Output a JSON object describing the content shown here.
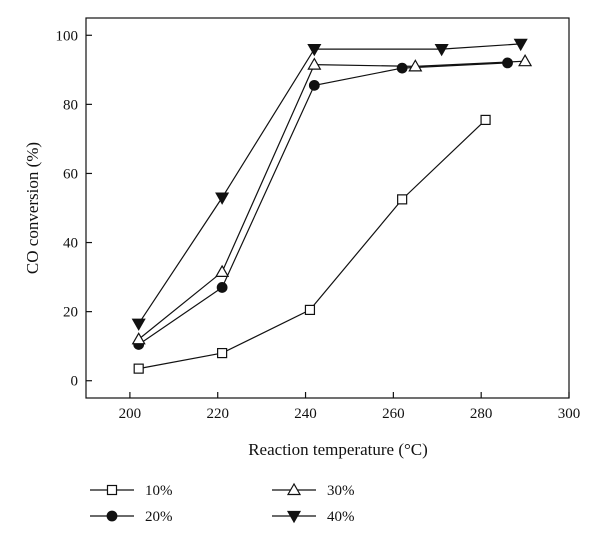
{
  "chart_data": {
    "type": "line",
    "title": "",
    "xlabel": "Reaction temperature (°C)",
    "ylabel": "CO conversion (%)",
    "xlim": [
      190,
      300
    ],
    "ylim": [
      -5,
      105
    ],
    "xticks": [
      200,
      220,
      240,
      260,
      280,
      300
    ],
    "yticks": [
      0,
      20,
      40,
      60,
      80,
      100
    ],
    "grid": false,
    "legend_position": "bottom",
    "series": [
      {
        "name": "10%",
        "marker": "square-open",
        "x": [
          202,
          221,
          241,
          262,
          281
        ],
        "y": [
          3.5,
          8,
          20.5,
          52.5,
          75.5
        ]
      },
      {
        "name": "20%",
        "marker": "circle-filled",
        "x": [
          202,
          221,
          242,
          262,
          286
        ],
        "y": [
          10.5,
          27,
          85.5,
          90.5,
          92
        ]
      },
      {
        "name": "30%",
        "marker": "triangle-up-open",
        "x": [
          202,
          221,
          242,
          265,
          290
        ],
        "y": [
          12,
          31.5,
          91.5,
          91,
          92.5
        ]
      },
      {
        "name": "40%",
        "marker": "triangle-down-filled",
        "x": [
          202,
          221,
          242,
          271,
          289
        ],
        "y": [
          16.5,
          53,
          96,
          96,
          97.5
        ]
      }
    ]
  }
}
